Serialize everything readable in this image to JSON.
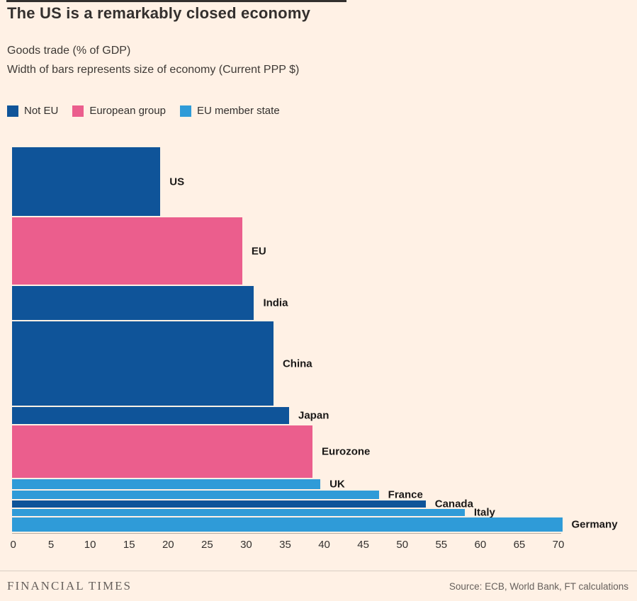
{
  "title": "The US is a remarkably closed economy",
  "subtitle_line1": "Goods trade (% of GDP)",
  "subtitle_line2": "Width of bars represents size of economy (Current PPP $)",
  "legend": {
    "items": [
      {
        "label": "Not EU",
        "group": "not_eu"
      },
      {
        "label": "European group",
        "group": "european_group"
      },
      {
        "label": "EU member state",
        "group": "eu_member"
      }
    ]
  },
  "colors": {
    "not_eu": "#0f5499",
    "european_group": "#eb5e8d",
    "eu_member": "#2f9bd8",
    "background": "#fff1e5",
    "text": "#33302e",
    "muted": "#66605c"
  },
  "chart_data": {
    "type": "bar",
    "orientation": "horizontal",
    "title": "The US is a remarkably closed economy",
    "xlabel": "Goods trade (% of GDP)",
    "bar_thickness_note": "Bar thickness encodes size of economy (Current PPP $)",
    "xlim": [
      0,
      70
    ],
    "x_ticks": [
      0,
      5,
      10,
      15,
      20,
      25,
      30,
      35,
      40,
      45,
      50,
      55,
      60,
      65,
      70
    ],
    "grid": false,
    "legend_position": "top",
    "bars": [
      {
        "label": "US",
        "value": 19.0,
        "group": "not_eu",
        "economy_size_px": 97
      },
      {
        "label": "EU",
        "value": 29.5,
        "group": "european_group",
        "economy_size_px": 95
      },
      {
        "label": "India",
        "value": 31.0,
        "group": "not_eu",
        "economy_size_px": 48
      },
      {
        "label": "China",
        "value": 33.5,
        "group": "not_eu",
        "economy_size_px": 119
      },
      {
        "label": "Japan",
        "value": 35.5,
        "group": "not_eu",
        "economy_size_px": 24
      },
      {
        "label": "Eurozone",
        "value": 38.5,
        "group": "european_group",
        "economy_size_px": 74
      },
      {
        "label": "UK",
        "value": 39.5,
        "group": "eu_member",
        "economy_size_px": 14
      },
      {
        "label": "France",
        "value": 47.0,
        "group": "eu_member",
        "economy_size_px": 12
      },
      {
        "label": "Canada",
        "value": 53.0,
        "group": "not_eu",
        "economy_size_px": 10
      },
      {
        "label": "Italy",
        "value": 58.0,
        "group": "eu_member",
        "economy_size_px": 10
      },
      {
        "label": "Germany",
        "value": 70.5,
        "group": "eu_member",
        "economy_size_px": 20
      }
    ]
  },
  "footer": {
    "brand": "FINANCIAL TIMES",
    "source": "Source: ECB, World Bank, FT calculations"
  }
}
